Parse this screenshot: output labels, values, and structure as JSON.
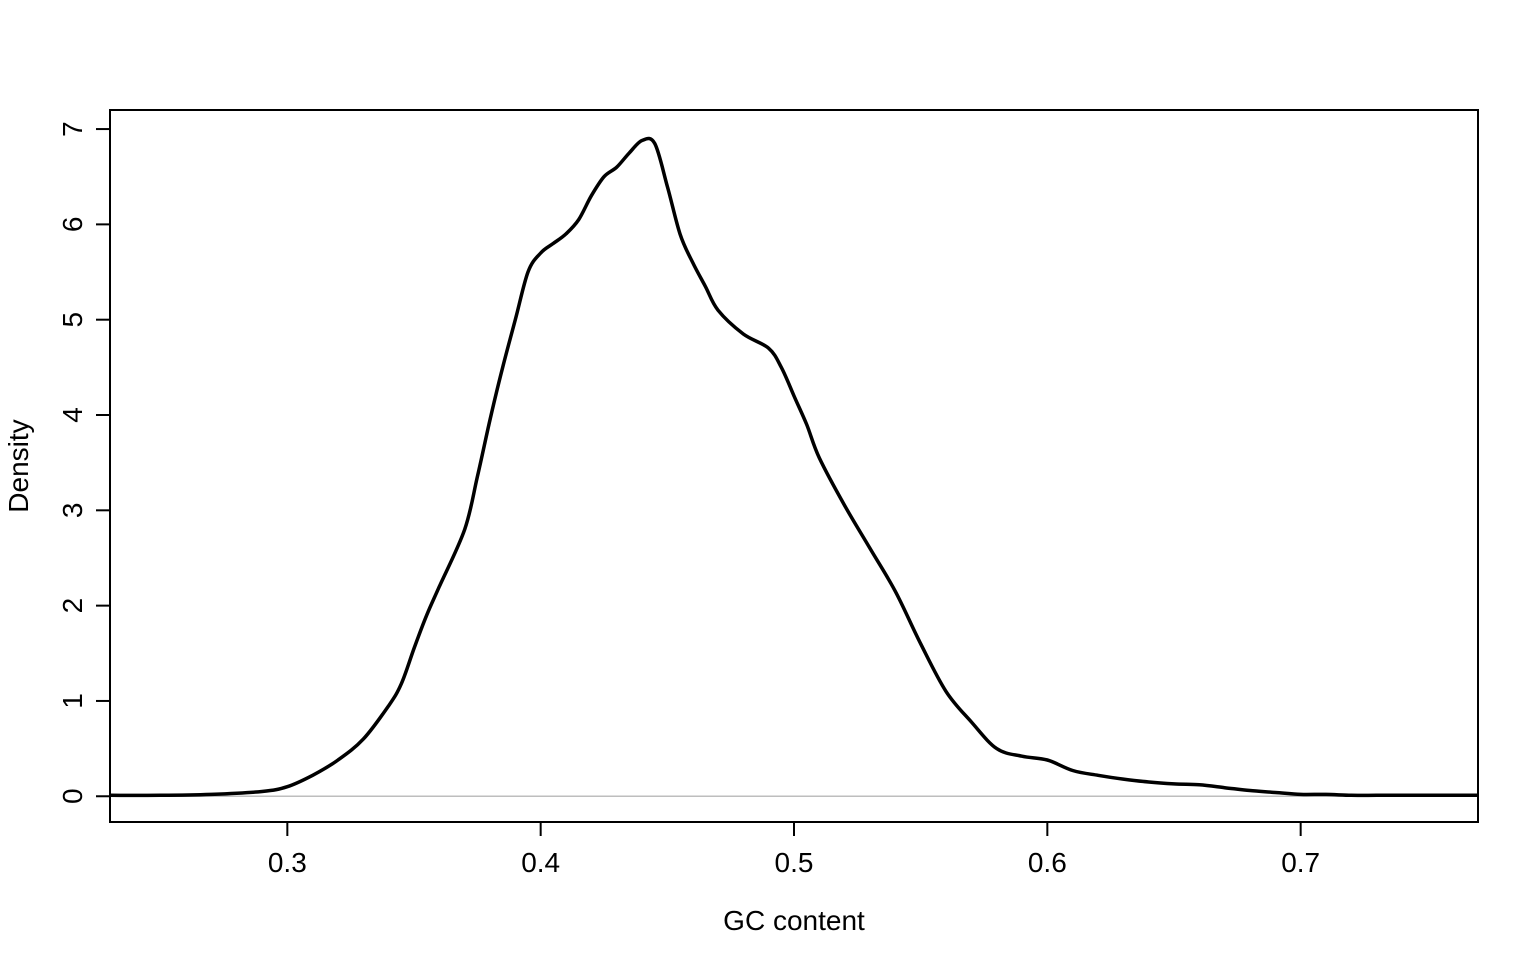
{
  "chart_data": {
    "type": "line",
    "title": "",
    "xlabel": "GC content",
    "ylabel": "Density",
    "xlim": [
      0.23,
      0.77
    ],
    "ylim": [
      -0.27,
      7.2
    ],
    "x_ticks": [
      0.3,
      0.4,
      0.5,
      0.6,
      0.7
    ],
    "x_tick_labels": [
      "0.3",
      "0.4",
      "0.5",
      "0.6",
      "0.7"
    ],
    "y_ticks": [
      0,
      1,
      2,
      3,
      4,
      5,
      6,
      7
    ],
    "y_tick_labels": [
      "0",
      "1",
      "2",
      "3",
      "4",
      "5",
      "6",
      "7"
    ],
    "zero_line": true,
    "grid": false,
    "legend": "none",
    "colors": {
      "line": "#000000",
      "axis": "#000000",
      "zero_line": "#bebebe"
    },
    "series": [
      {
        "x": [
          0.23,
          0.25,
          0.27,
          0.29,
          0.3,
          0.31,
          0.32,
          0.33,
          0.34,
          0.345,
          0.35,
          0.355,
          0.36,
          0.37,
          0.375,
          0.38,
          0.385,
          0.39,
          0.395,
          0.4,
          0.405,
          0.41,
          0.415,
          0.42,
          0.425,
          0.43,
          0.435,
          0.44,
          0.445,
          0.45,
          0.455,
          0.46,
          0.465,
          0.47,
          0.48,
          0.49,
          0.495,
          0.5,
          0.505,
          0.51,
          0.52,
          0.53,
          0.54,
          0.55,
          0.56,
          0.57,
          0.58,
          0.59,
          0.6,
          0.61,
          0.62,
          0.63,
          0.64,
          0.65,
          0.66,
          0.67,
          0.68,
          0.69,
          0.7,
          0.71,
          0.72,
          0.73,
          0.74,
          0.75,
          0.77
        ],
        "y": [
          0.01,
          0.01,
          0.02,
          0.05,
          0.1,
          0.22,
          0.38,
          0.6,
          0.95,
          1.18,
          1.55,
          1.9,
          2.2,
          2.8,
          3.35,
          3.95,
          4.5,
          5.0,
          5.5,
          5.7,
          5.8,
          5.9,
          6.05,
          6.3,
          6.5,
          6.6,
          6.75,
          6.88,
          6.85,
          6.4,
          5.9,
          5.6,
          5.35,
          5.1,
          4.85,
          4.7,
          4.5,
          4.2,
          3.9,
          3.55,
          3.05,
          2.6,
          2.15,
          1.6,
          1.1,
          0.78,
          0.5,
          0.42,
          0.38,
          0.27,
          0.22,
          0.18,
          0.15,
          0.13,
          0.12,
          0.09,
          0.06,
          0.04,
          0.02,
          0.02,
          0.01,
          0.01,
          0.01,
          0.01,
          0.01
        ]
      }
    ]
  }
}
